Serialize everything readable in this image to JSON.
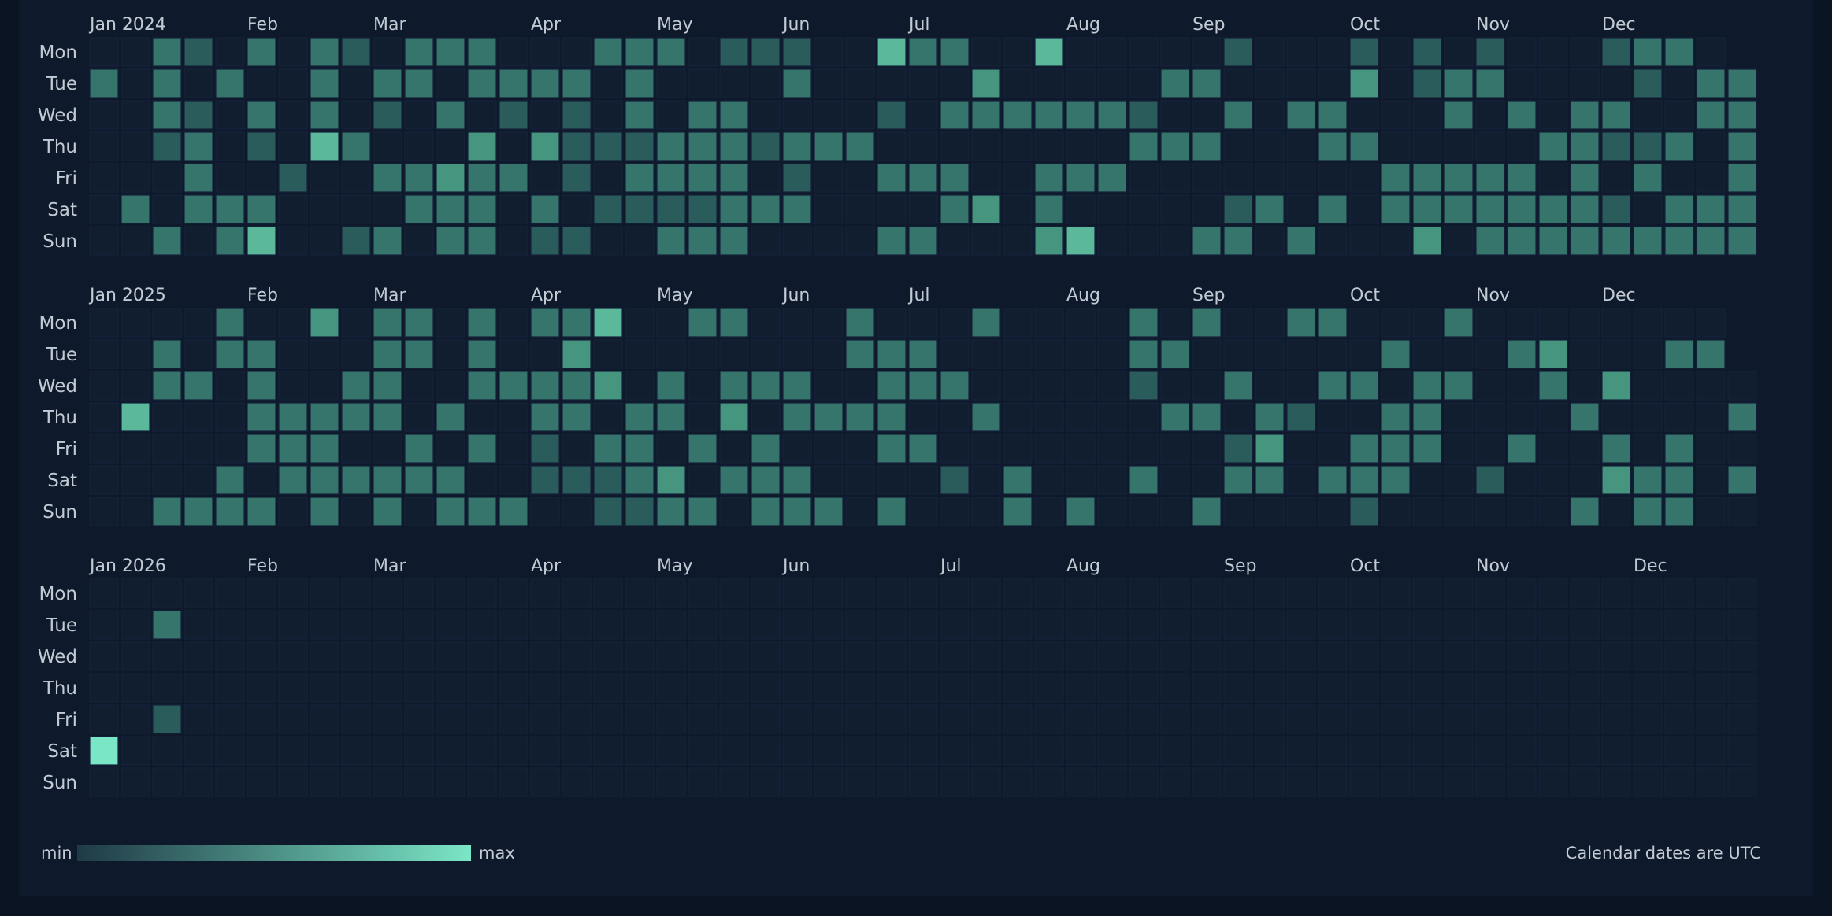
{
  "chart_data": {
    "type": "heatmap",
    "day_labels": [
      "Mon",
      "Tue",
      "Wed",
      "Thu",
      "Fri",
      "Sat",
      "Sun"
    ],
    "colors": {
      "empty": "#111e30",
      "min": "#1f3a46",
      "max": "#7be6c6",
      "levels": [
        "#111e30",
        "#22444b",
        "#2b5c5c",
        "#35756c",
        "#45957f",
        "#5bb89a",
        "#7be6c6"
      ]
    },
    "legend": {
      "min_label": "min",
      "max_label": "max"
    },
    "note": "Calendar dates are UTC",
    "years": [
      {
        "label_first": "Jan 2024",
        "month_labels": [
          {
            "text": "Jan 2024",
            "week": 0
          },
          {
            "text": "Feb",
            "week": 5
          },
          {
            "text": "Mar",
            "week": 9
          },
          {
            "text": "Apr",
            "week": 14
          },
          {
            "text": "May",
            "week": 18
          },
          {
            "text": "Jun",
            "week": 22
          },
          {
            "text": "Jul",
            "week": 26
          },
          {
            "text": "Aug",
            "week": 31
          },
          {
            "text": "Sep",
            "week": 35
          },
          {
            "text": "Oct",
            "week": 40
          },
          {
            "text": "Nov",
            "week": 44
          },
          {
            "text": "Dec",
            "week": 48
          }
        ],
        "weeks": 53,
        "rows": [
          "0032030320333000333022200533005000002000202020002330",
          "3030300303303333030000300000400000330000402330000203302",
          "0032030302030202030330000203333332003033000303033003330",
          "0023020530004042223332333000000003330003300000332230300",
          "0003002003343302033330200333003330000000033333030300330",
          "0303330000333030222233300003403000002303033333332033333",
          "0030350023033022003330000330004500033030004033333333330"
        ]
      },
      {
        "label_first": "Jan 2025",
        "month_labels": [
          {
            "text": "Jan 2025",
            "week": 0
          },
          {
            "text": "Feb",
            "week": 5
          },
          {
            "text": "Mar",
            "week": 9
          },
          {
            "text": "Apr",
            "week": 14
          },
          {
            "text": "May",
            "week": 18
          },
          {
            "text": "Jun",
            "week": 22
          },
          {
            "text": "Jul",
            "week": 26
          },
          {
            "text": "Aug",
            "week": 31
          },
          {
            "text": "Sep",
            "week": 35
          },
          {
            "text": "Oct",
            "week": 40
          },
          {
            "text": "Nov",
            "week": 44
          },
          {
            "text": "Dec",
            "week": 48
          }
        ],
        "weeks": 53,
        "rows": [
          "0000300403303033500330003000300003030033000300000000",
          "0030330003303004000000003330000003300000030003400033",
          "0033030033003333403033300333000002003003303300304000033",
          "0500033333030033033040333300300000330320033000030000300",
          "0000033300303020330303000330000000002400333003003030000",
          "0000303333330022234033300002030003003303330020004330300",
          "0033330303033300223303330300030300030000200000030330003"
        ]
      },
      {
        "label_first": "Jan 2026",
        "month_labels": [
          {
            "text": "Jan 2026",
            "week": 0
          },
          {
            "text": "Feb",
            "week": 5
          },
          {
            "text": "Mar",
            "week": 9
          },
          {
            "text": "Apr",
            "week": 14
          },
          {
            "text": "May",
            "week": 18
          },
          {
            "text": "Jun",
            "week": 22
          },
          {
            "text": "Jul",
            "week": 27
          },
          {
            "text": "Aug",
            "week": 31
          },
          {
            "text": "Sep",
            "week": 36
          },
          {
            "text": "Oct",
            "week": 40
          },
          {
            "text": "Nov",
            "week": 44
          },
          {
            "text": "Dec",
            "week": 49
          }
        ],
        "weeks": 53,
        "rows": [
          "0000000000000000000000000000000000000000000000000000000",
          "0030000000000000000000000000000000000000000000000000000",
          "0000000000000000000000000000000000000000000000000000000",
          "0000000000000000000000000000000000000000000000000000000",
          "0020000000000000000000000000000000000000000000000000000",
          "6000000000000000000000000000000000000000000000000000000",
          "0000000000000000000000000000000000000000000000000000000"
        ]
      }
    ]
  }
}
